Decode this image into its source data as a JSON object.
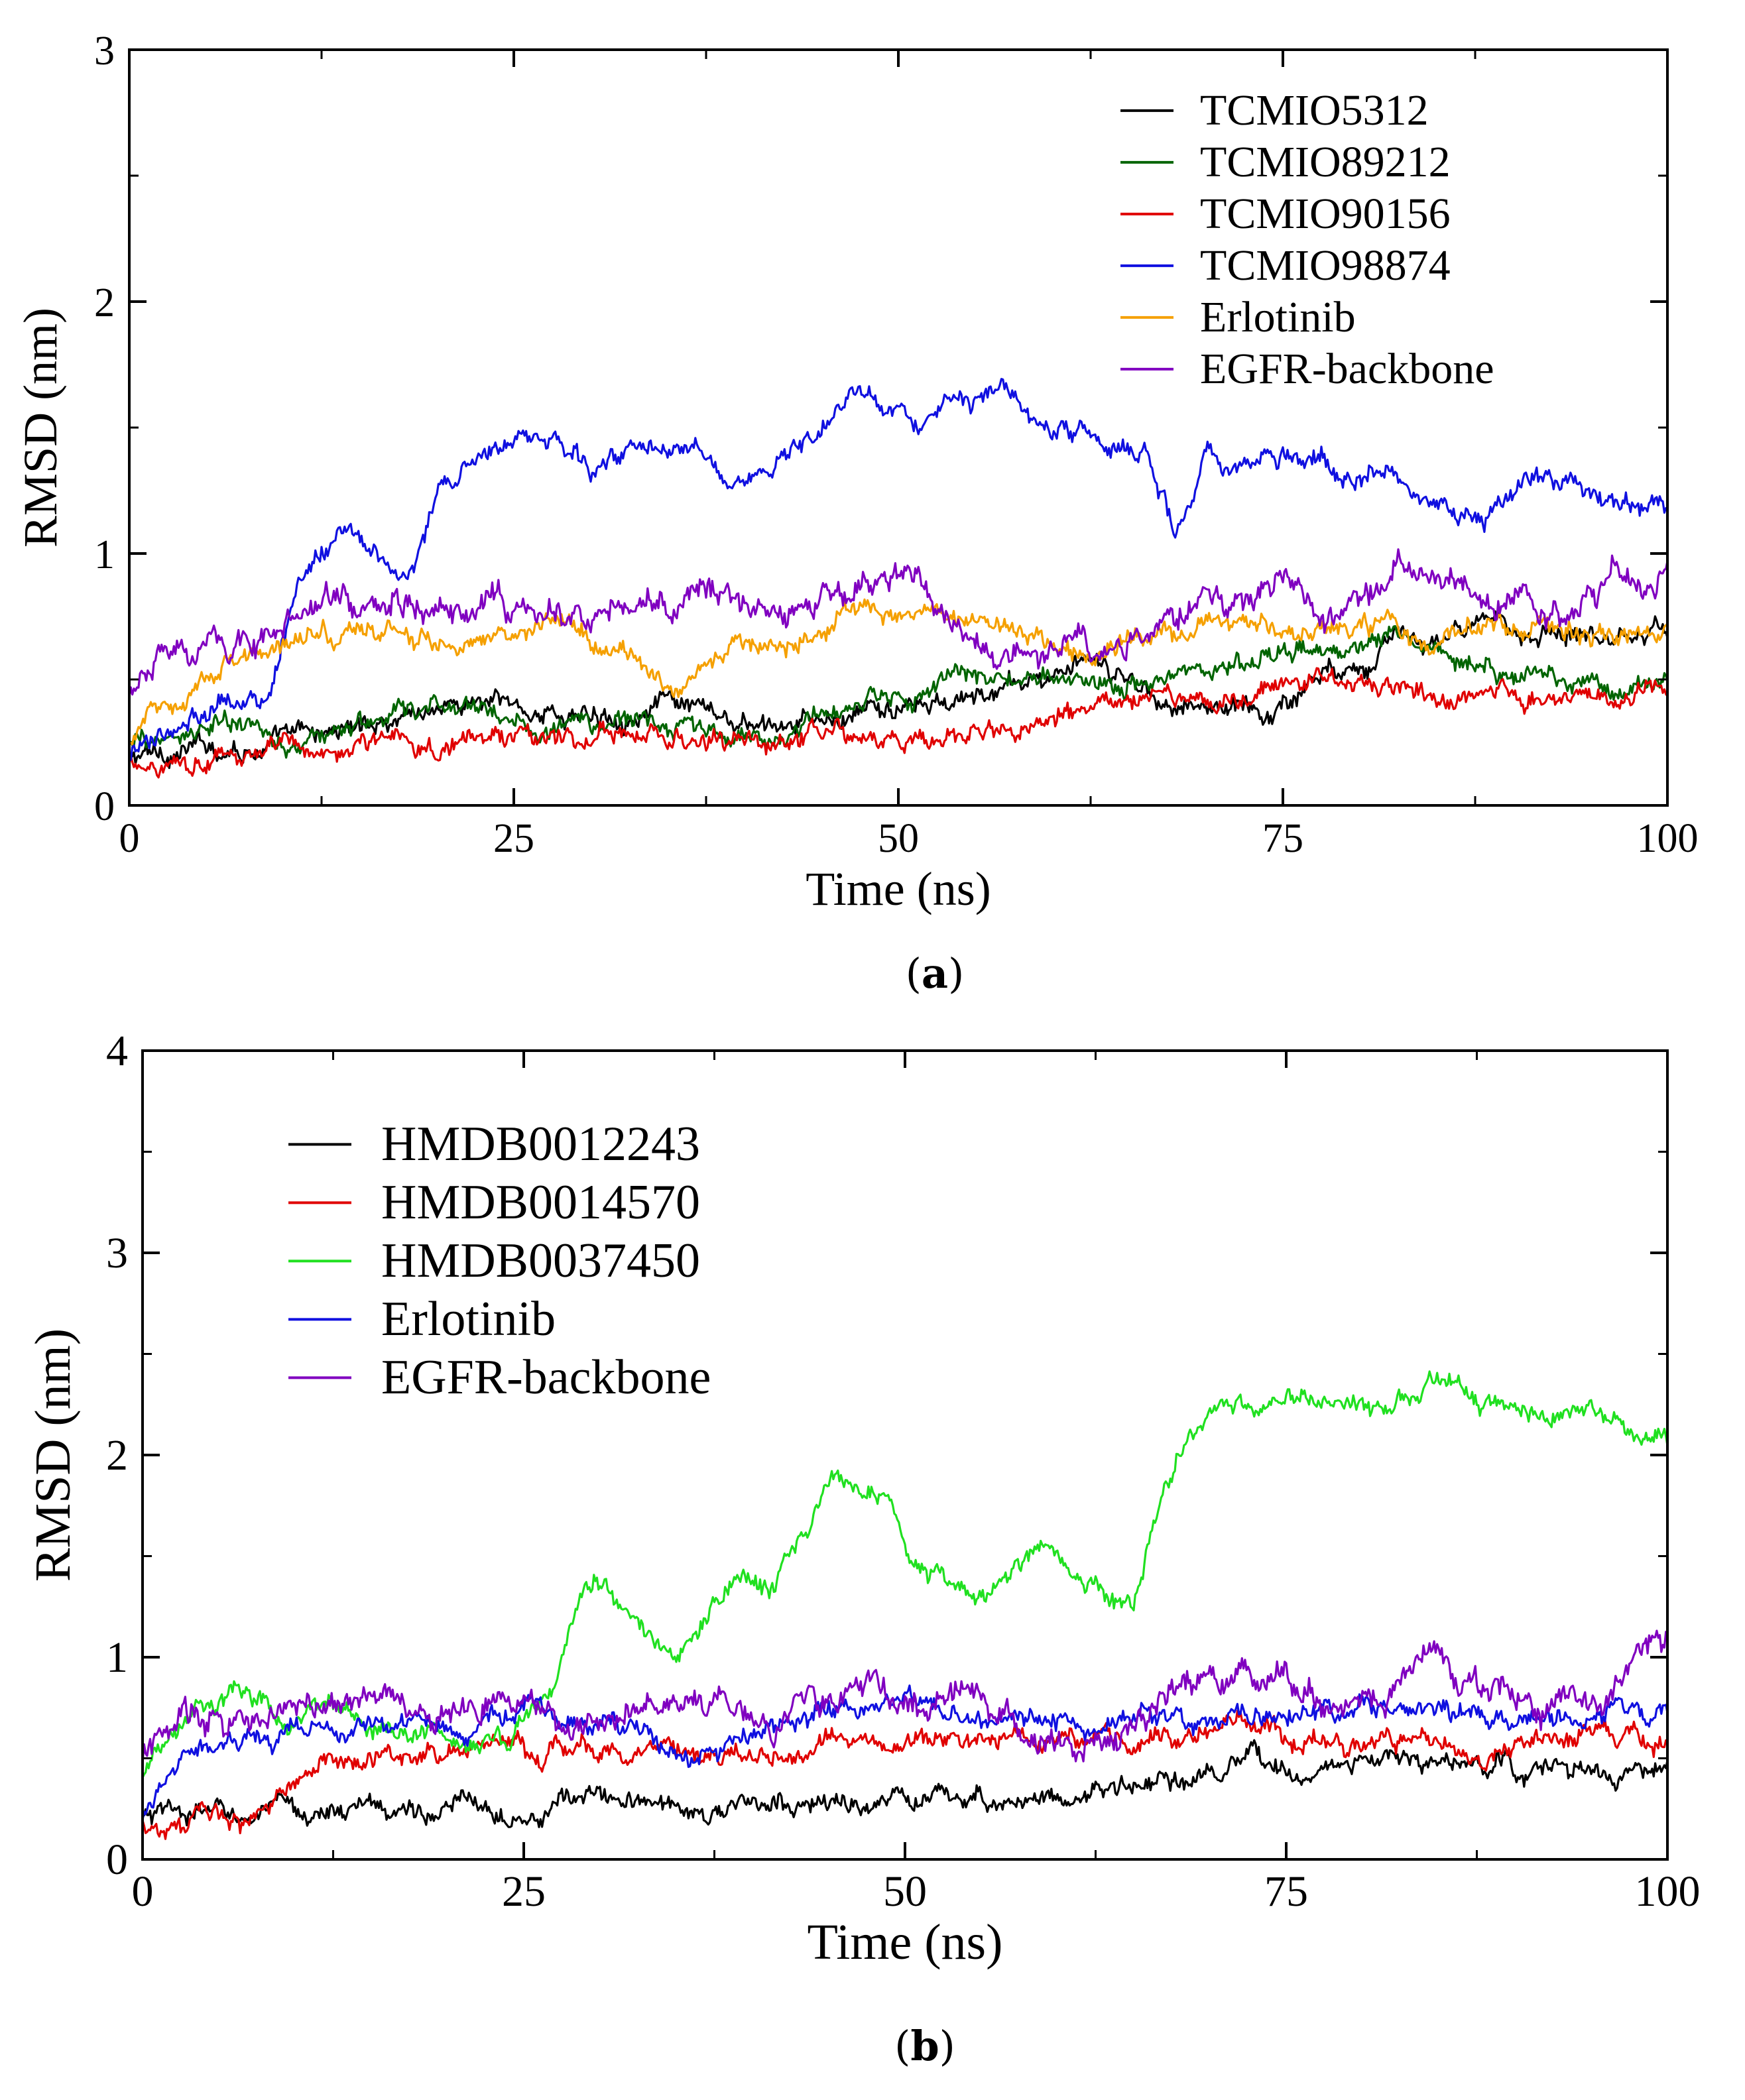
{
  "chart_data": [
    {
      "type": "line",
      "panel": "a",
      "caption": "a",
      "xlabel": "Time (ns)",
      "ylabel": "RMSD (nm)",
      "xlim": [
        0,
        100
      ],
      "ylim": [
        0,
        3
      ],
      "xticks": [
        "0",
        "25",
        "50",
        "75",
        "100"
      ],
      "yticks": [
        "0",
        "1",
        "2",
        "3"
      ],
      "legend_position": "top-right",
      "series": [
        {
          "name": "TCMIO5312",
          "color": "#000000",
          "x": [
            0,
            3,
            6,
            10,
            14,
            18,
            22,
            26,
            30,
            34,
            38,
            42,
            46,
            50,
            54,
            58,
            62,
            66,
            70,
            74,
            78,
            82,
            86,
            90,
            94,
            100
          ],
          "y": [
            0.18,
            0.22,
            0.24,
            0.25,
            0.3,
            0.38,
            0.42,
            0.38,
            0.35,
            0.42,
            0.33,
            0.28,
            0.33,
            0.38,
            0.4,
            0.48,
            0.55,
            0.46,
            0.4,
            0.37,
            0.55,
            0.65,
            0.66,
            0.7,
            0.72,
            0.7
          ]
        },
        {
          "name": "TCMIO89212",
          "color": "#006400",
          "x": [
            0,
            3,
            6,
            10,
            14,
            18,
            22,
            26,
            30,
            34,
            38,
            42,
            46,
            50,
            54,
            58,
            62,
            66,
            70,
            74,
            78,
            82,
            86,
            90,
            94,
            100
          ],
          "y": [
            0.22,
            0.28,
            0.32,
            0.24,
            0.3,
            0.35,
            0.4,
            0.33,
            0.3,
            0.35,
            0.27,
            0.27,
            0.35,
            0.42,
            0.5,
            0.48,
            0.52,
            0.5,
            0.55,
            0.58,
            0.6,
            0.7,
            0.62,
            0.55,
            0.52,
            0.5
          ]
        },
        {
          "name": "TCMIO90156",
          "color": "#e00000",
          "x": [
            0,
            3,
            6,
            10,
            14,
            18,
            22,
            26,
            30,
            34,
            38,
            42,
            46,
            50,
            54,
            58,
            62,
            66,
            70,
            74,
            78,
            82,
            86,
            90,
            94,
            100
          ],
          "y": [
            0.15,
            0.2,
            0.22,
            0.2,
            0.24,
            0.25,
            0.26,
            0.3,
            0.27,
            0.26,
            0.24,
            0.23,
            0.25,
            0.27,
            0.3,
            0.33,
            0.35,
            0.38,
            0.4,
            0.45,
            0.5,
            0.47,
            0.46,
            0.44,
            0.43,
            0.43
          ]
        },
        {
          "name": "TCMIO98874",
          "color": "#1010e0",
          "x": [
            0,
            3,
            6,
            9,
            11,
            13,
            16,
            18,
            20,
            22,
            25,
            28,
            30,
            33,
            36,
            40,
            44,
            48,
            51,
            54,
            57,
            60,
            63,
            66,
            68,
            70,
            73,
            76,
            79,
            82,
            85,
            88,
            91,
            94,
            97,
            100
          ],
          "y": [
            0.2,
            0.3,
            0.45,
            0.4,
            0.9,
            1.05,
            1.0,
            0.9,
            1.2,
            1.35,
            1.48,
            1.4,
            1.3,
            1.45,
            1.45,
            1.3,
            1.45,
            1.65,
            1.45,
            1.55,
            1.62,
            1.5,
            1.45,
            1.4,
            1.1,
            1.4,
            1.35,
            1.4,
            1.3,
            1.35,
            1.2,
            1.15,
            1.3,
            1.25,
            1.2,
            1.2
          ]
        },
        {
          "name": "Erlotinib",
          "color": "#f5a000",
          "x": [
            0,
            3,
            6,
            9,
            12,
            15,
            18,
            21,
            24,
            27,
            30,
            33,
            36,
            39,
            42,
            45,
            48,
            51,
            54,
            57,
            60,
            63,
            66,
            70,
            75,
            80,
            85,
            90,
            95,
            100
          ],
          "y": [
            0.25,
            0.4,
            0.55,
            0.6,
            0.68,
            0.7,
            0.68,
            0.65,
            0.68,
            0.68,
            0.65,
            0.58,
            0.48,
            0.6,
            0.68,
            0.72,
            0.78,
            0.75,
            0.78,
            0.7,
            0.65,
            0.62,
            0.7,
            0.72,
            0.7,
            0.7,
            0.68,
            0.7,
            0.7,
            0.7
          ]
        },
        {
          "name": "EGFR-backbone",
          "color": "#8000c0",
          "x": [
            0,
            3,
            6,
            9,
            12,
            15,
            18,
            21,
            24,
            27,
            30,
            33,
            36,
            39,
            42,
            45,
            48,
            51,
            54,
            57,
            60,
            63,
            66,
            69,
            72,
            75,
            78,
            81,
            84,
            87,
            90,
            93,
            96,
            100
          ],
          "y": [
            0.45,
            0.6,
            0.62,
            0.7,
            0.78,
            0.75,
            0.8,
            0.75,
            0.85,
            0.72,
            0.7,
            0.75,
            0.8,
            0.82,
            0.78,
            0.8,
            0.85,
            0.9,
            0.65,
            0.6,
            0.62,
            0.58,
            0.62,
            0.85,
            0.82,
            0.88,
            0.7,
            0.85,
            0.95,
            0.85,
            0.8,
            0.7,
            0.85,
            1.0
          ]
        }
      ]
    },
    {
      "type": "line",
      "panel": "b",
      "caption": "b",
      "xlabel": "Time (ns)",
      "ylabel": "RMSD (nm)",
      "xlim": [
        0,
        100
      ],
      "ylim": [
        0,
        4
      ],
      "xticks": [
        "0",
        "25",
        "50",
        "75",
        "100"
      ],
      "yticks": [
        "0",
        "1",
        "2",
        "3",
        "4"
      ],
      "legend_position": "top-left",
      "series": [
        {
          "name": "HMDB0012243",
          "color": "#000000",
          "x": [
            0,
            5,
            10,
            15,
            20,
            25,
            30,
            35,
            40,
            45,
            50,
            55,
            60,
            65,
            70,
            75,
            80,
            85,
            90,
            95,
            100
          ],
          "y": [
            0.2,
            0.22,
            0.22,
            0.25,
            0.25,
            0.28,
            0.3,
            0.25,
            0.25,
            0.27,
            0.28,
            0.3,
            0.32,
            0.35,
            0.4,
            0.45,
            0.48,
            0.47,
            0.45,
            0.42,
            0.42
          ]
        },
        {
          "name": "HMDB0014570",
          "color": "#e00000",
          "x": [
            0,
            4,
            8,
            10,
            12,
            16,
            20,
            24,
            28,
            32,
            36,
            40,
            44,
            48,
            52,
            56,
            60,
            64,
            68,
            72,
            76,
            80,
            84,
            88,
            92,
            96,
            100
          ],
          "y": [
            0.18,
            0.18,
            0.22,
            0.35,
            0.52,
            0.5,
            0.55,
            0.58,
            0.55,
            0.55,
            0.48,
            0.5,
            0.55,
            0.6,
            0.58,
            0.6,
            0.62,
            0.6,
            0.62,
            0.65,
            0.6,
            0.62,
            0.6,
            0.58,
            0.6,
            0.62,
            0.62
          ]
        },
        {
          "name": "HMDB0037450",
          "color": "#20e020",
          "x": [
            0,
            3,
            6,
            9,
            12,
            15,
            18,
            21,
            24,
            27,
            29,
            31,
            33,
            35,
            37,
            39,
            41,
            43,
            45,
            47,
            49,
            51,
            53,
            55,
            57,
            59,
            61,
            63,
            65,
            67,
            69,
            71,
            73,
            75,
            77,
            79,
            82,
            85,
            88,
            91,
            94,
            97,
            100
          ],
          "y": [
            0.4,
            0.8,
            0.85,
            0.7,
            0.75,
            0.6,
            0.65,
            0.5,
            0.6,
            0.9,
            1.4,
            1.3,
            1.15,
            1.05,
            1.2,
            1.45,
            1.25,
            1.55,
            1.85,
            1.75,
            1.7,
            1.4,
            1.35,
            1.3,
            1.45,
            1.55,
            1.4,
            1.35,
            1.2,
            1.9,
            2.15,
            2.25,
            2.2,
            2.3,
            2.25,
            2.3,
            2.2,
            2.35,
            2.25,
            2.2,
            2.2,
            2.15,
            2.1
          ]
        },
        {
          "name": "Erlotinib",
          "color": "#1010e0",
          "x": [
            0,
            3,
            6,
            9,
            12,
            15,
            18,
            21,
            24,
            27,
            30,
            33,
            36,
            39,
            42,
            45,
            48,
            51,
            54,
            57,
            60,
            63,
            66,
            70,
            75,
            80,
            85,
            90,
            95,
            100
          ],
          "y": [
            0.2,
            0.45,
            0.58,
            0.62,
            0.65,
            0.68,
            0.68,
            0.65,
            0.65,
            0.7,
            0.68,
            0.62,
            0.48,
            0.62,
            0.68,
            0.72,
            0.75,
            0.75,
            0.72,
            0.7,
            0.68,
            0.6,
            0.72,
            0.7,
            0.7,
            0.7,
            0.68,
            0.7,
            0.7,
            0.72
          ]
        },
        {
          "name": "EGFR-backbone",
          "color": "#8000c0",
          "x": [
            0,
            3,
            6,
            9,
            12,
            15,
            18,
            21,
            24,
            27,
            30,
            33,
            36,
            39,
            42,
            45,
            48,
            51,
            54,
            57,
            60,
            63,
            66,
            69,
            72,
            75,
            78,
            81,
            84,
            87,
            90,
            93,
            96,
            100
          ],
          "y": [
            0.5,
            0.62,
            0.65,
            0.7,
            0.75,
            0.78,
            0.8,
            0.72,
            0.75,
            0.7,
            0.72,
            0.75,
            0.78,
            0.72,
            0.7,
            0.8,
            0.85,
            0.75,
            0.8,
            0.62,
            0.58,
            0.6,
            0.65,
            0.85,
            0.82,
            0.9,
            0.7,
            0.85,
            0.95,
            0.85,
            0.78,
            0.72,
            0.8,
            1.15
          ]
        }
      ]
    }
  ]
}
